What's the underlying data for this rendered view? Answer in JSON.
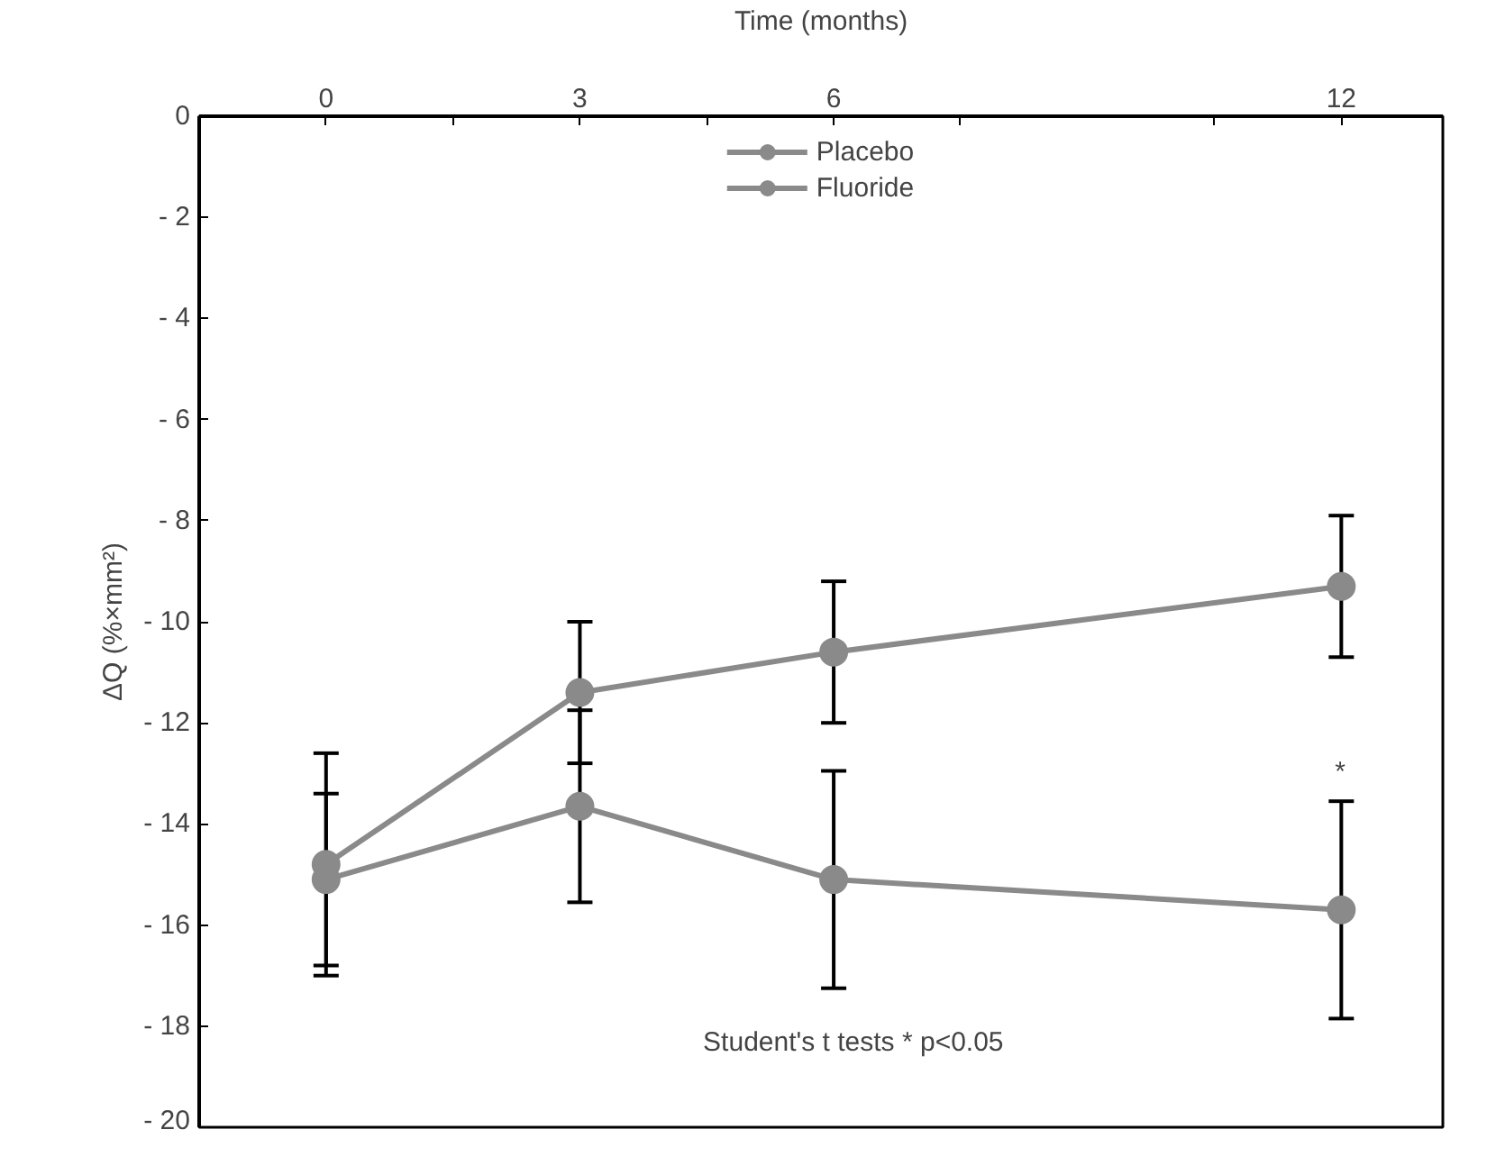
{
  "chart_data": {
    "type": "line",
    "xlabel": "Time (months)",
    "ylabel": "ΔQ (%×mm²)",
    "x": [
      0,
      3,
      6,
      12
    ],
    "series": [
      {
        "name": "Placebo",
        "color": "#8a8a8a",
        "values": [
          -15.1,
          -13.65,
          -15.1,
          -15.7
        ],
        "errors": [
          1.7,
          1.9,
          2.15,
          2.15
        ]
      },
      {
        "name": "Fluoride",
        "color": "#8a8a8a",
        "values": [
          -14.8,
          -11.4,
          -10.6,
          -9.3
        ],
        "errors": [
          2.2,
          1.4,
          1.4,
          1.4
        ]
      }
    ],
    "xlim": [
      -1.5,
      13.2
    ],
    "xticks": [
      {
        "value": -1.5,
        "label": null
      },
      0,
      {
        "value": 1.5,
        "label": null
      },
      3,
      {
        "value": 4.5,
        "label": null
      },
      6,
      {
        "value": 7.5,
        "label": null
      },
      {
        "value": 10.5,
        "label": null
      },
      12
    ],
    "ylim": [
      -20,
      0
    ],
    "yticks": [
      0,
      -2,
      -4,
      -6,
      -8,
      -10,
      -12,
      -14,
      -16,
      -18,
      -20
    ],
    "annotations": [
      "*",
      "Student's t tests *  p<0.05"
    ],
    "grid": false,
    "legend": "top",
    "marker": "circle",
    "line_style": "solid"
  }
}
